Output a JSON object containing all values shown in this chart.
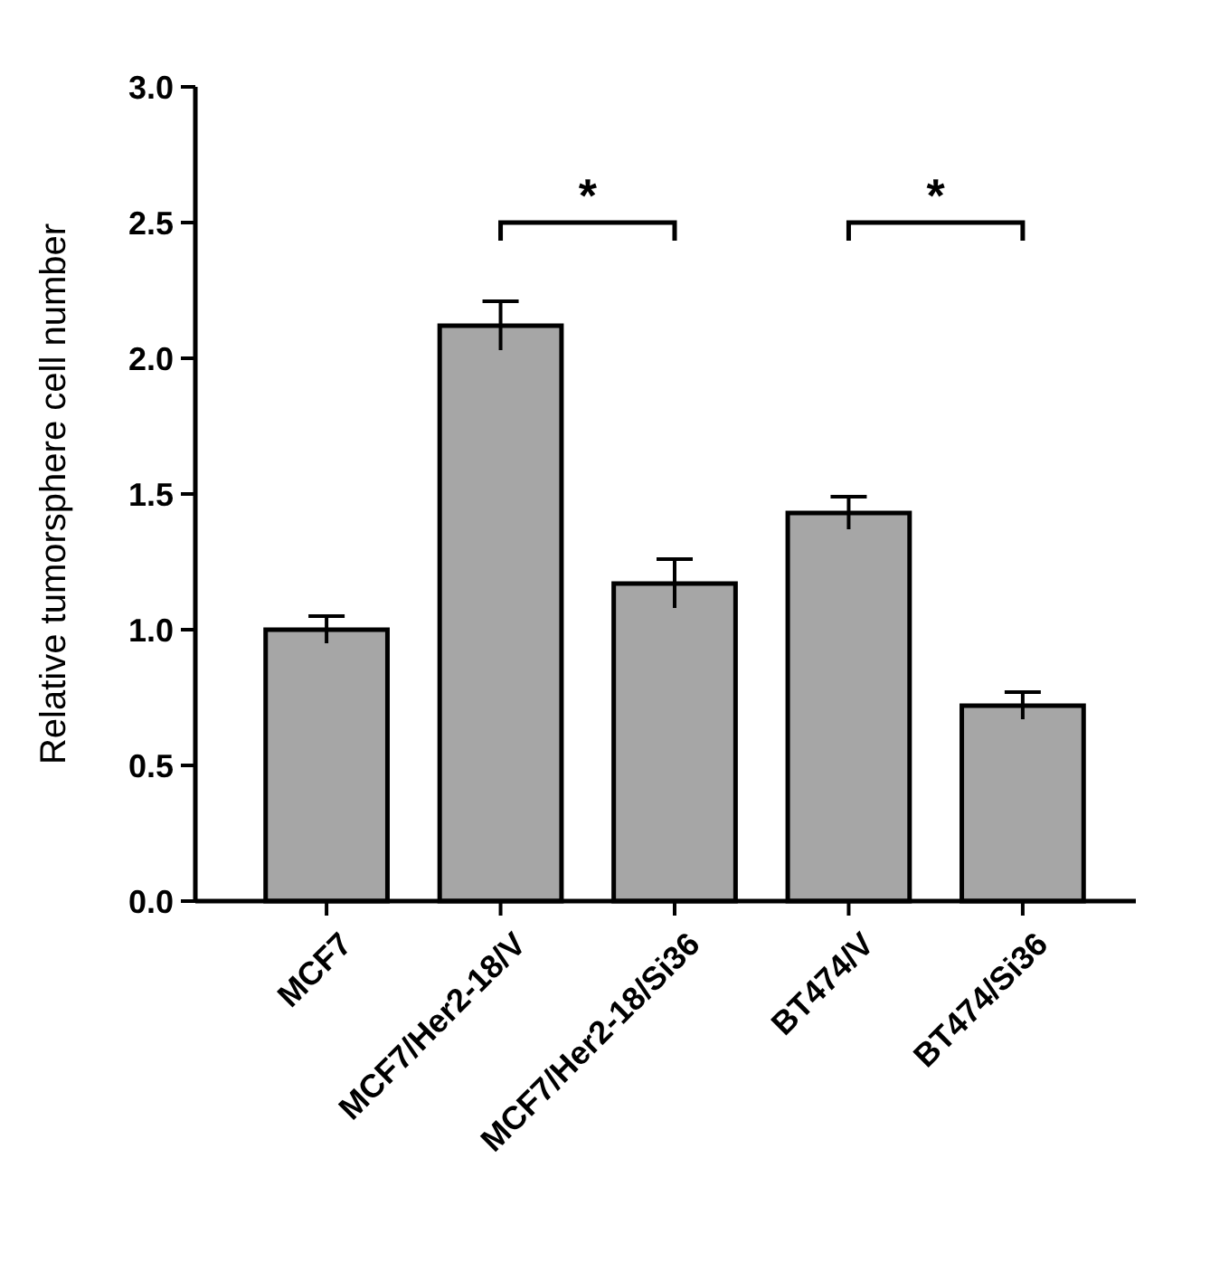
{
  "chart_data": {
    "type": "bar",
    "ylabel": "Relative tumorsphere cell number",
    "categories": [
      "MCF7",
      "MCF7/Her2-18/V",
      "MCF7/Her2-18/Si36",
      "BT474/V",
      "BT474/Si36"
    ],
    "values": [
      1.0,
      2.12,
      1.17,
      1.43,
      0.72
    ],
    "errors": [
      0.05,
      0.09,
      0.09,
      0.06,
      0.05
    ],
    "color": "#a6a6a6",
    "ylim": [
      0,
      3
    ],
    "yticks": [
      {
        "value": 0,
        "label": "0.0"
      },
      {
        "value": 0.5,
        "label": "0.5"
      },
      {
        "value": 1,
        "label": "1.0"
      },
      {
        "value": 1.5,
        "label": "1.5"
      },
      {
        "value": 2,
        "label": "2.0"
      },
      {
        "value": 2.5,
        "label": "2.5"
      },
      {
        "value": 3,
        "label": "3.0"
      }
    ],
    "annotations": [
      "*",
      "*"
    ]
  }
}
